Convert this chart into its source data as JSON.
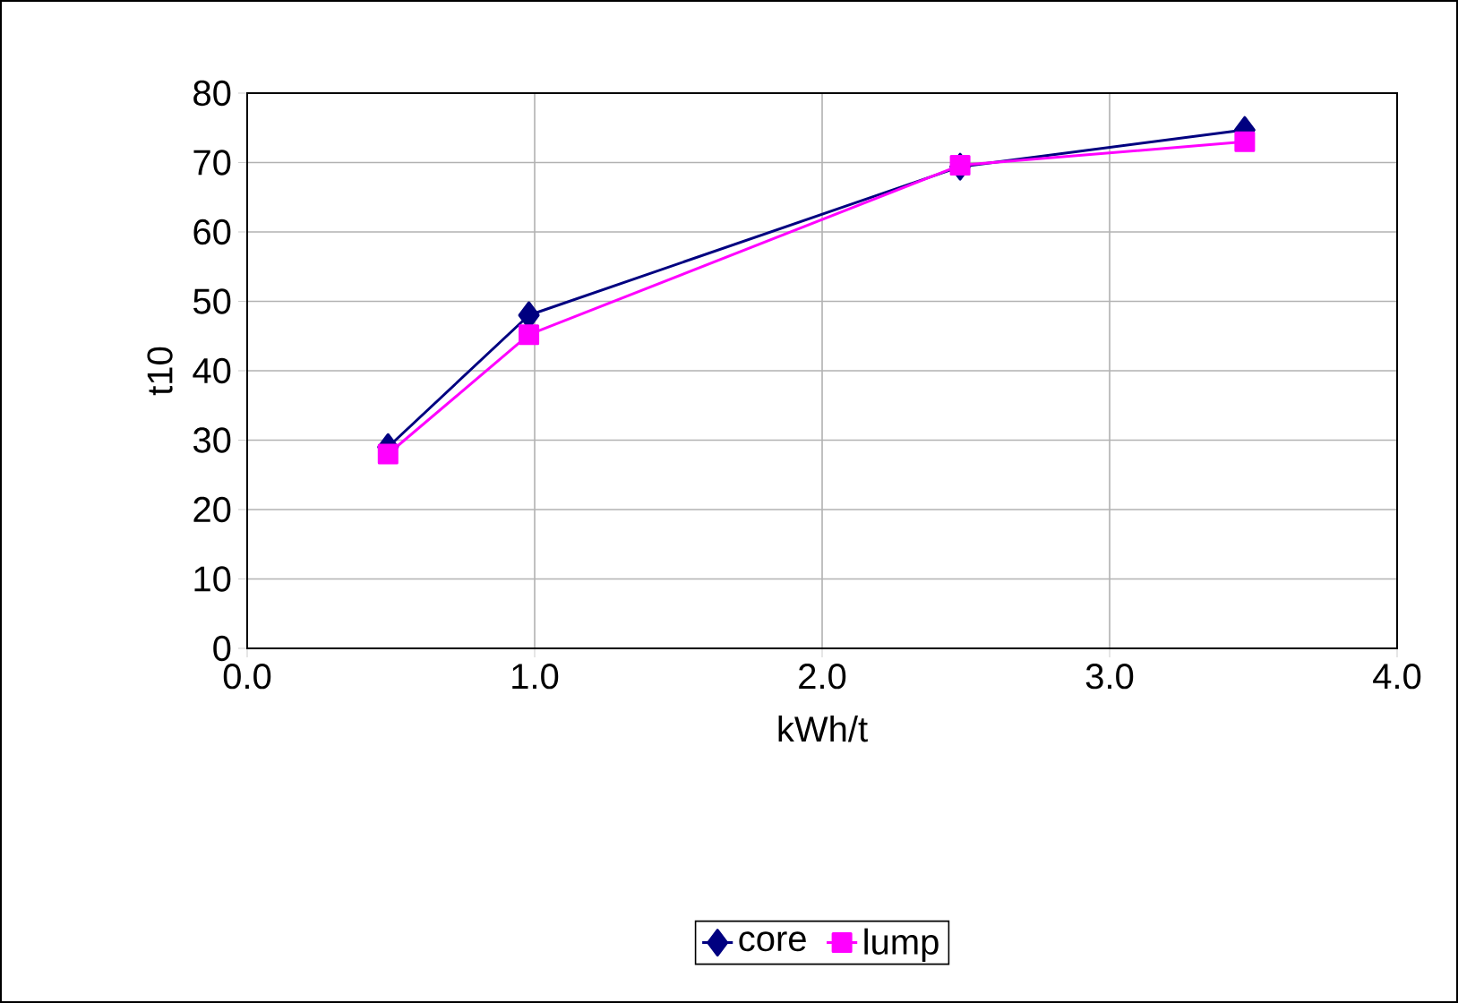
{
  "chart_data": {
    "type": "line",
    "xlabel": "kWh/t",
    "ylabel": "t10",
    "series": [
      {
        "name": "core",
        "color": "#000080",
        "marker": "diamond",
        "x": [
          0.49,
          0.98,
          2.48,
          3.47
        ],
        "values": [
          29,
          48,
          69.4,
          74.7
        ]
      },
      {
        "name": "lump",
        "color": "#ff00ff",
        "marker": "square",
        "x": [
          0.49,
          0.98,
          2.48,
          3.47
        ],
        "values": [
          28,
          45.2,
          69.6,
          73
        ]
      }
    ],
    "xlim": [
      0,
      4
    ],
    "ylim": [
      0,
      80
    ],
    "xticks": [
      {
        "value": 0,
        "label": "0.0"
      },
      {
        "value": 1,
        "label": "1.0"
      },
      {
        "value": 2,
        "label": "2.0"
      },
      {
        "value": 3,
        "label": "3.0"
      },
      {
        "value": 4,
        "label": "4.0"
      }
    ],
    "yticks": [
      0,
      10,
      20,
      30,
      40,
      50,
      60,
      70,
      80
    ],
    "grid": true,
    "legend": "bottom",
    "line_style": "solid"
  }
}
